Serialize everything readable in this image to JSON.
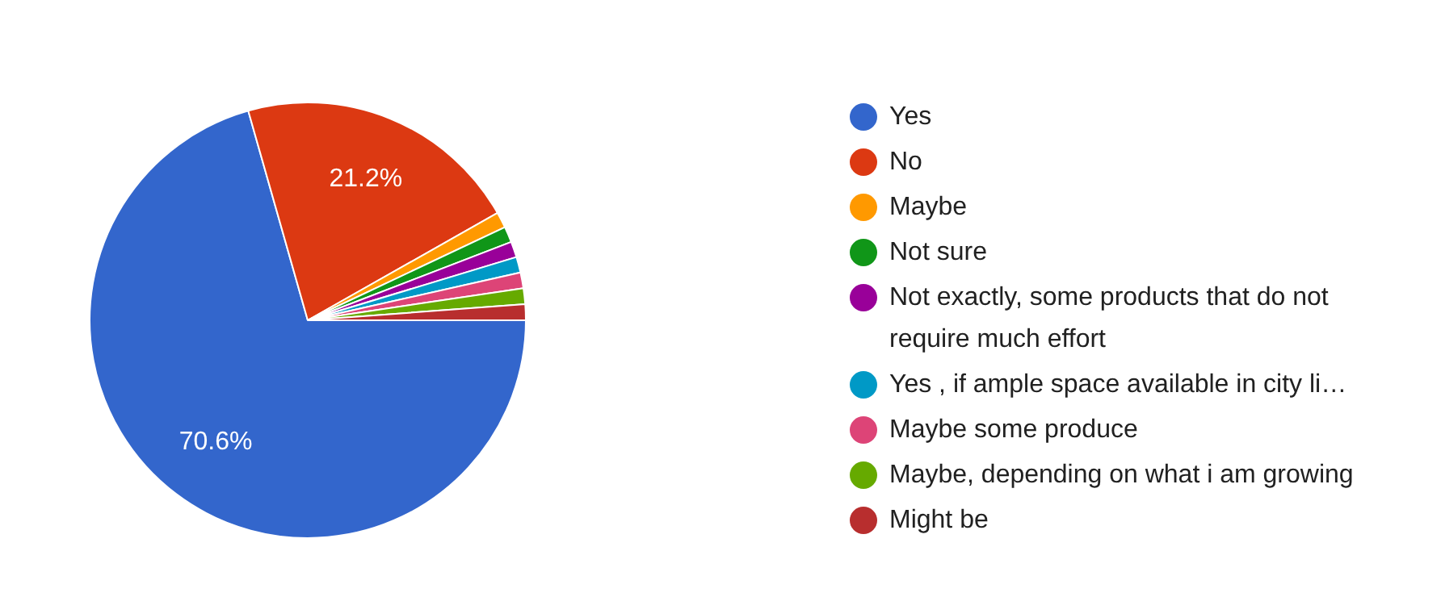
{
  "chart_data": {
    "type": "pie",
    "categories": [
      "Yes",
      "No",
      "Maybe",
      "Not sure",
      "Not exactly, some products that do not require much effort",
      "Yes , if ample space available in city li…",
      "Maybe some produce",
      "Maybe, depending on what i am growing",
      "Might be"
    ],
    "values": [
      70.6,
      21.2,
      1.17,
      1.17,
      1.17,
      1.17,
      1.17,
      1.17,
      1.18
    ],
    "colors": [
      "#3366cc",
      "#dc3912",
      "#ff9900",
      "#109618",
      "#990099",
      "#0099c6",
      "#dd4477",
      "#66aa00",
      "#b82e2e"
    ],
    "value_labels": [
      "70.6%",
      "21.2%",
      null,
      null,
      null,
      null,
      null,
      null,
      null
    ],
    "legend": "right"
  }
}
